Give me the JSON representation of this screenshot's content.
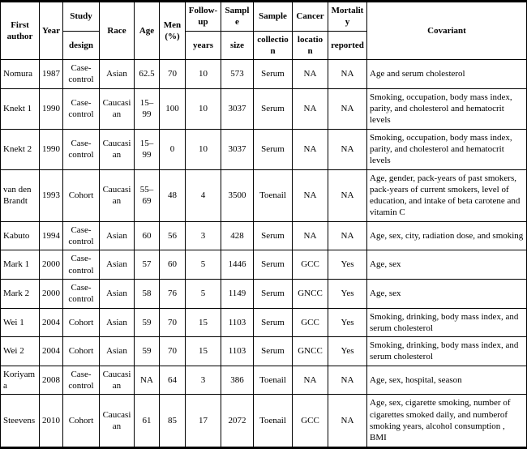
{
  "table": {
    "columns": [
      {
        "key": "first-author",
        "top": "First author",
        "bottom": null
      },
      {
        "key": "year",
        "top": "Year",
        "bottom": null
      },
      {
        "key": "study-design",
        "top": "Study",
        "bottom": "design"
      },
      {
        "key": "race",
        "top": "Race",
        "bottom": null
      },
      {
        "key": "age",
        "top": "Age",
        "bottom": null
      },
      {
        "key": "men-pct",
        "top": "Men (%)",
        "bottom": null
      },
      {
        "key": "followup-years",
        "top": "Follow-up",
        "bottom": "years"
      },
      {
        "key": "sample-size",
        "top": "Sample",
        "bottom": "size"
      },
      {
        "key": "sample-collection",
        "top": "Sample",
        "bottom": "collection"
      },
      {
        "key": "cancer-location",
        "top": "Cancer",
        "bottom": "location"
      },
      {
        "key": "mortality-reported",
        "top": "Mortality",
        "bottom": "reported"
      },
      {
        "key": "covariant",
        "top": "Covariant",
        "bottom": null
      }
    ],
    "rows": [
      [
        "Nomura",
        "1987",
        "Case-control",
        "Asian",
        "62.5",
        "70",
        "10",
        "573",
        "Serum",
        "NA",
        "NA",
        "Age and serum cholesterol"
      ],
      [
        "Knekt 1",
        "1990",
        "Case-control",
        "Caucasian",
        "15–99",
        "100",
        "10",
        "3037",
        "Serum",
        "NA",
        "NA",
        "Smoking, occupation, body mass index, parity, and cholesterol and hematocrit levels"
      ],
      [
        "Knekt 2",
        "1990",
        "Case-control",
        "Caucasian",
        "15–99",
        "0",
        "10",
        "3037",
        "Serum",
        "NA",
        "NA",
        "Smoking, occupation, body mass index, parity, and cholesterol and hematocrit levels"
      ],
      [
        "van den Brandt",
        "1993",
        "Cohort",
        "Caucasian",
        "55–69",
        "48",
        "4",
        "3500",
        "Toenail",
        "NA",
        "NA",
        "Age, gender, pack-years of past smokers, pack-years of current smokers, level of education, and intake of beta carotene and vitamin C"
      ],
      [
        "Kabuto",
        "1994",
        "Case-control",
        "Asian",
        "60",
        "56",
        "3",
        "428",
        "Serum",
        "NA",
        "NA",
        "Age, sex, city, radiation dose, and smoking"
      ],
      [
        "Mark 1",
        "2000",
        "Case-control",
        "Asian",
        "57",
        "60",
        "5",
        "1446",
        "Serum",
        "GCC",
        "Yes",
        "Age, sex"
      ],
      [
        "Mark 2",
        "2000",
        "Case-control",
        "Asian",
        "58",
        "76",
        "5",
        "1149",
        "Serum",
        "GNCC",
        "Yes",
        "Age, sex"
      ],
      [
        "Wei 1",
        "2004",
        "Cohort",
        "Asian",
        "59",
        "70",
        "15",
        "1103",
        "Serum",
        "GCC",
        "Yes",
        "Smoking, drinking, body mass index, and serum cholesterol"
      ],
      [
        "Wei 2",
        "2004",
        "Cohort",
        "Asian",
        "59",
        "70",
        "15",
        "1103",
        "Serum",
        "GNCC",
        "Yes",
        "Smoking, drinking, body mass index, and serum cholesterol"
      ],
      [
        "Koriyama",
        "2008",
        "Case-control",
        "Caucasian",
        "NA",
        "64",
        "3",
        "386",
        "Toenail",
        "NA",
        "NA",
        "Age, sex, hospital, season"
      ],
      [
        "Steevens",
        "2010",
        "Cohort",
        "Caucasian",
        "61",
        "85",
        "17",
        "2072",
        "Toenail",
        "GCC",
        "NA",
        "Age, sex, cigarette smoking, number of cigarettes smoked daily, and numberof smoking years, alcohol consumption , BMI"
      ]
    ]
  }
}
